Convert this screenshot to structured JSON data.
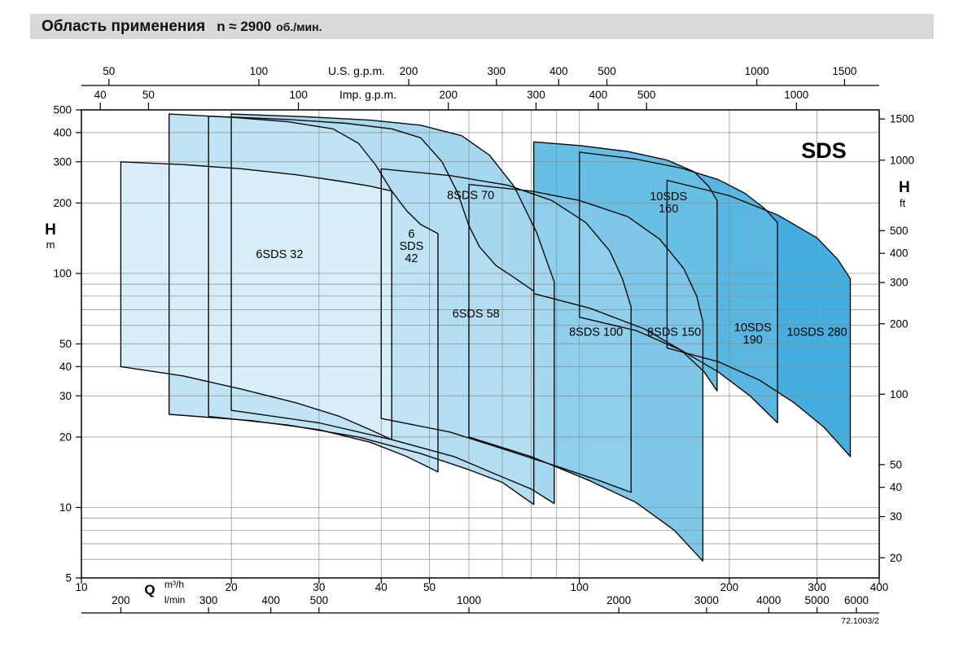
{
  "header": {
    "title": "Область применения",
    "n_label": "n ≈ 2900",
    "units_label": "об./мин."
  },
  "chart_data": {
    "type": "area",
    "title": "Область применения n ≈ 2900 об./мин.",
    "brand": "SDS",
    "doc_ref": "72.1003/2",
    "axis_titles": {
      "q": "Q",
      "h": "H"
    },
    "x": {
      "unit": "m³/h",
      "scale": "log",
      "min": 10,
      "max": 400,
      "m3h_ticks": [
        10,
        20,
        30,
        40,
        50,
        100,
        200,
        300,
        400
      ],
      "grid": [
        20,
        30,
        40,
        50,
        60,
        70,
        80,
        90,
        100,
        200,
        300,
        400
      ]
    },
    "x_secondary": [
      {
        "name": "us_gpm",
        "label": "U.S. g.p.m.",
        "to_m3h": 0.22712,
        "ticks": [
          50,
          100,
          200,
          300,
          400,
          500,
          1000,
          1500
        ]
      },
      {
        "name": "imp_gpm",
        "label": "Imp. g.p.m.",
        "to_m3h": 0.27277,
        "ticks": [
          40,
          50,
          100,
          200,
          300,
          400,
          500,
          1000
        ]
      },
      {
        "name": "l_min",
        "label": "l/min",
        "to_m3h": 0.06,
        "ticks": [
          200,
          300,
          400,
          500,
          1000,
          2000,
          3000,
          4000,
          5000,
          6000
        ]
      }
    ],
    "y": {
      "unit": "m",
      "scale": "log",
      "min": 5,
      "max": 500,
      "ticks": [
        5,
        10,
        20,
        30,
        40,
        50,
        100,
        200,
        300,
        400,
        500
      ],
      "grid": [
        6,
        7,
        8,
        9,
        10,
        20,
        30,
        40,
        50,
        60,
        70,
        80,
        90,
        100,
        200,
        300,
        400
      ]
    },
    "y_secondary": {
      "name": "h_ft",
      "unit": "ft",
      "to_m": 0.3048,
      "ticks": [
        20,
        30,
        40,
        50,
        100,
        200,
        300,
        400,
        500,
        1000,
        1500
      ]
    },
    "series": [
      {
        "name": "10SDS 280",
        "label_lines": [
          "10SDS 280"
        ],
        "label_at": [
          300,
          56
        ],
        "color": "#45aede",
        "top": [
          [
            150,
            250
          ],
          [
            200,
            215
          ],
          [
            250,
            178
          ],
          [
            300,
            142
          ],
          [
            330,
            115
          ],
          [
            350,
            95
          ]
        ],
        "bottom": [
          [
            150,
            48
          ],
          [
            190,
            42
          ],
          [
            230,
            35
          ],
          [
            270,
            28
          ],
          [
            310,
            22
          ],
          [
            350,
            16.5
          ]
        ]
      },
      {
        "name": "10SDS 190",
        "label_lines": [
          "10SDS",
          "190"
        ],
        "label_at": [
          223,
          55
        ],
        "color": "#58b6e1",
        "top": [
          [
            100,
            330
          ],
          [
            130,
            308
          ],
          [
            160,
            282
          ],
          [
            190,
            252
          ],
          [
            215,
            220
          ],
          [
            235,
            190
          ],
          [
            250,
            165
          ]
        ],
        "bottom": [
          [
            100,
            65
          ],
          [
            130,
            57
          ],
          [
            160,
            47
          ],
          [
            190,
            38
          ],
          [
            220,
            30
          ],
          [
            250,
            23
          ]
        ]
      },
      {
        "name": "10SDS 160",
        "label_lines": [
          "10SDS",
          "160"
        ],
        "label_at": [
          151,
          200
        ],
        "color": "#68bfe4",
        "top": [
          [
            81,
            365
          ],
          [
            100,
            352
          ],
          [
            125,
            332
          ],
          [
            150,
            305
          ],
          [
            170,
            272
          ],
          [
            182,
            235
          ],
          [
            189,
            205
          ]
        ],
        "bottom": [
          [
            81,
            82
          ],
          [
            105,
            71
          ],
          [
            135,
            58
          ],
          [
            160,
            47
          ],
          [
            178,
            38
          ],
          [
            189,
            31.5
          ]
        ]
      },
      {
        "name": "8SDS 150",
        "label_lines": [
          "8SDS 150"
        ],
        "label_at": [
          155,
          56
        ],
        "color": "#7ec7e8",
        "top": [
          [
            60,
            240
          ],
          [
            80,
            225
          ],
          [
            100,
            205
          ],
          [
            125,
            175
          ],
          [
            145,
            140
          ],
          [
            162,
            105
          ],
          [
            172,
            80
          ],
          [
            177,
            62
          ]
        ],
        "bottom": [
          [
            60,
            20
          ],
          [
            80,
            16.5
          ],
          [
            105,
            13
          ],
          [
            130,
            10.5
          ],
          [
            155,
            8
          ],
          [
            177,
            5.9
          ]
        ]
      },
      {
        "name": "8SDS 100",
        "label_lines": [
          "8SDS 100"
        ],
        "label_at": [
          108,
          56
        ],
        "color": "#90cfeb",
        "top": [
          [
            40,
            280
          ],
          [
            55,
            262
          ],
          [
            72,
            238
          ],
          [
            88,
            205
          ],
          [
            103,
            165
          ],
          [
            115,
            125
          ],
          [
            122,
            95
          ],
          [
            127,
            72
          ]
        ],
        "bottom": [
          [
            40,
            24
          ],
          [
            55,
            21
          ],
          [
            72,
            17.5
          ],
          [
            90,
            15
          ],
          [
            110,
            13
          ],
          [
            127,
            11.6
          ]
        ]
      },
      {
        "name": "8SDS 70",
        "label_lines": [
          "8SDS 70"
        ],
        "label_at": [
          60.5,
          215
        ],
        "color": "#a5d8ef",
        "top": [
          [
            20,
            480
          ],
          [
            28,
            468
          ],
          [
            38,
            452
          ],
          [
            48,
            430
          ],
          [
            58,
            388
          ],
          [
            66,
            320
          ],
          [
            74,
            235
          ],
          [
            82,
            150
          ],
          [
            89,
            92
          ]
        ],
        "bottom": [
          [
            20,
            26
          ],
          [
            30,
            23
          ],
          [
            42,
            19.5
          ],
          [
            56,
            16.5
          ],
          [
            70,
            13.5
          ],
          [
            80,
            12
          ],
          [
            89,
            10.4
          ]
        ]
      },
      {
        "name": "6SDS 58",
        "label_lines": [
          "6SDS 58"
        ],
        "label_at": [
          62,
          67
        ],
        "color": "#b3ddf1",
        "top": [
          [
            18,
            470
          ],
          [
            26,
            455
          ],
          [
            34,
            438
          ],
          [
            42,
            415
          ],
          [
            48,
            380
          ],
          [
            53,
            300
          ],
          [
            57,
            220
          ],
          [
            60,
            160
          ],
          [
            63,
            130
          ],
          [
            68,
            108
          ],
          [
            74,
            96
          ],
          [
            81,
            84
          ]
        ],
        "bottom": [
          [
            18,
            24.5
          ],
          [
            26,
            22.5
          ],
          [
            36,
            20
          ],
          [
            48,
            17
          ],
          [
            60,
            14.5
          ],
          [
            70,
            12.8
          ],
          [
            81,
            10.3
          ]
        ]
      },
      {
        "name": "6SDS 42",
        "label_lines": [
          "6",
          "SDS",
          "42"
        ],
        "label_at": [
          46,
          130
        ],
        "color": "#c0e4f4",
        "top": [
          [
            15,
            480
          ],
          [
            20,
            465
          ],
          [
            26,
            445
          ],
          [
            32,
            415
          ],
          [
            36,
            360
          ],
          [
            39,
            290
          ],
          [
            42,
            225
          ],
          [
            45,
            185
          ],
          [
            48,
            162
          ],
          [
            52,
            148
          ]
        ],
        "bottom": [
          [
            15,
            25
          ],
          [
            22,
            23.5
          ],
          [
            30,
            21.5
          ],
          [
            38,
            19
          ],
          [
            45,
            16.5
          ],
          [
            52,
            14.2
          ]
        ]
      },
      {
        "name": "6SDS 32",
        "label_lines": [
          "6SDS 32"
        ],
        "label_at": [
          25,
          120
        ],
        "color": "#d7edf8",
        "top": [
          [
            12,
            300
          ],
          [
            16,
            292
          ],
          [
            21,
            280
          ],
          [
            27,
            264
          ],
          [
            33,
            248
          ],
          [
            38,
            236
          ],
          [
            42,
            225
          ]
        ],
        "bottom": [
          [
            12,
            40
          ],
          [
            16,
            36.5
          ],
          [
            21,
            32
          ],
          [
            27,
            28
          ],
          [
            33,
            24.5
          ],
          [
            38,
            21.5
          ],
          [
            42,
            19.5
          ]
        ]
      }
    ]
  }
}
